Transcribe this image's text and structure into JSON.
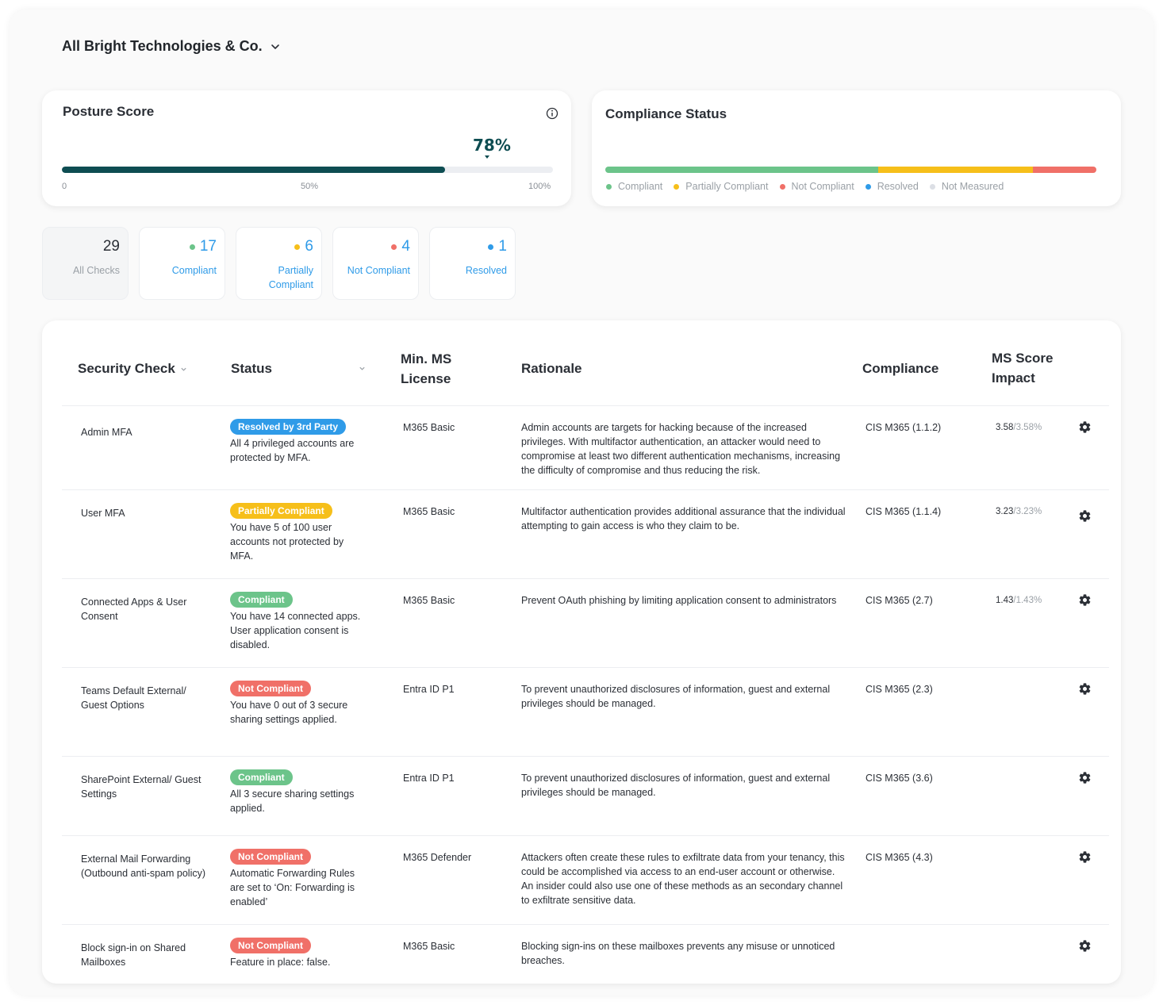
{
  "org": {
    "name": "All Bright Technologies & Co.",
    "chevron_icon": "chevron-down-icon"
  },
  "posture": {
    "title": "Posture Score",
    "score_label": "78%",
    "score_fraction": 0.78,
    "ticks": [
      "0",
      "50%",
      "100%"
    ],
    "info_icon": "info-icon"
  },
  "compliance": {
    "title": "Compliance Status",
    "segments": [
      {
        "name": "Compliant",
        "fraction": 0.555,
        "color": "#6cc48a"
      },
      {
        "name": "Partially Compliant",
        "fraction": 0.315,
        "color": "#f6bf1a"
      },
      {
        "name": "Not Compliant",
        "fraction": 0.13,
        "color": "#f07068"
      }
    ],
    "legend": [
      {
        "label": "Compliant",
        "color": "#6cc48a"
      },
      {
        "label": "Partially Compliant",
        "color": "#f6bf1a"
      },
      {
        "label": "Not Compliant",
        "color": "#f07068"
      },
      {
        "label": "Resolved",
        "color": "#2f9be8"
      },
      {
        "label": "Not Measured",
        "color": "#dcdfe5"
      }
    ]
  },
  "filters": [
    {
      "count": "29",
      "label": "All Checks",
      "dot": "",
      "active": true
    },
    {
      "count": "17",
      "label": "Compliant",
      "dot": "#6cc48a",
      "active": false
    },
    {
      "count": "6",
      "label": "Partially Compliant",
      "dot": "#f6bf1a",
      "active": false
    },
    {
      "count": "4",
      "label": "Not Compliant",
      "dot": "#f07068",
      "active": false
    },
    {
      "count": "1",
      "label": "Resolved",
      "dot": "#2f9be8",
      "active": false
    }
  ],
  "table": {
    "headers": {
      "check": "Security Check",
      "status": "Status",
      "license": "Min. MS License",
      "rationale": "Rationale",
      "compliance": "Compliance",
      "impact": "MS Score Impact"
    },
    "rows": [
      {
        "check": "Admin MFA",
        "badge": "Resolved by 3rd Party",
        "badge_color": "#2f9be8",
        "status_desc": "All 4 privileged accounts are protected by MFA.",
        "license": "M365 Basic",
        "rationale": "Admin accounts are targets for hacking because of the increased privileges. With multifactor authentication, an attacker would need to compromise at least two different authentication mechanisms, increasing the difficulty of compromise and thus reducing the risk.",
        "compliance": "CIS M365 (1.1.2)",
        "impact_score": "3.58",
        "impact_pct": "/3.58%"
      },
      {
        "check": "User MFA",
        "badge": "Partially Compliant",
        "badge_color": "#f6bf1a",
        "status_desc": "You have 5 of 100 user accounts not protected by MFA.",
        "license": "M365 Basic",
        "rationale": "Multifactor authentication provides additional assurance that the individual attempting to gain access is who they claim to be.",
        "compliance": "CIS M365 (1.1.4)",
        "impact_score": "3.23",
        "impact_pct": "/3.23%"
      },
      {
        "check": "Connected Apps & User Consent",
        "badge": "Compliant",
        "badge_color": "#6cc48a",
        "status_desc": "You have 14 connected apps. User application consent is disabled.",
        "license": "M365 Basic",
        "rationale": "Prevent OAuth phishing by limiting application consent to administrators",
        "compliance": "CIS M365 (2.7)",
        "impact_score": "1.43",
        "impact_pct": "/1.43%"
      },
      {
        "check": "Teams Default External/ Guest Options",
        "badge": "Not Compliant",
        "badge_color": "#f07068",
        "status_desc": "You have 0 out of 3 secure sharing settings applied.",
        "license": "Entra ID P1",
        "rationale": "To prevent unauthorized disclosures of information, guest and external privileges should be managed.",
        "compliance": "CIS M365 (2.3)",
        "impact_score": "",
        "impact_pct": ""
      },
      {
        "check": "SharePoint External/ Guest Settings",
        "badge": "Compliant",
        "badge_color": "#6cc48a",
        "status_desc": "All 3 secure sharing settings applied.",
        "license": "Entra ID P1",
        "rationale": "To prevent unauthorized disclosures of information, guest and external privileges should be managed.",
        "compliance": "CIS M365 (3.6)",
        "impact_score": "",
        "impact_pct": ""
      },
      {
        "check": "External Mail Forwarding (Outbound anti-spam policy)",
        "badge": "Not Compliant",
        "badge_color": "#f07068",
        "status_desc": "Automatic Forwarding Rules are set to ‘On: Forwarding is enabled’",
        "license": "M365 Defender",
        "rationale": "Attackers often create these rules to exfiltrate data from your tenancy, this could be accomplished via access to an end-user account or otherwise. An insider could also use one of these methods as an secondary channel to exfiltrate sensitive data.",
        "compliance": "CIS M365 (4.3)",
        "impact_score": "",
        "impact_pct": ""
      },
      {
        "check": "Block sign-in on Shared Mailboxes",
        "badge": "Not Compliant",
        "badge_color": "#f07068",
        "status_desc": "Feature in place: false.",
        "license": "M365 Basic",
        "rationale": "Blocking sign-ins on these mailboxes prevents any misuse or unnoticed breaches.",
        "compliance": "",
        "impact_score": "",
        "impact_pct": ""
      }
    ],
    "row_action_icon": "gear-icon"
  }
}
